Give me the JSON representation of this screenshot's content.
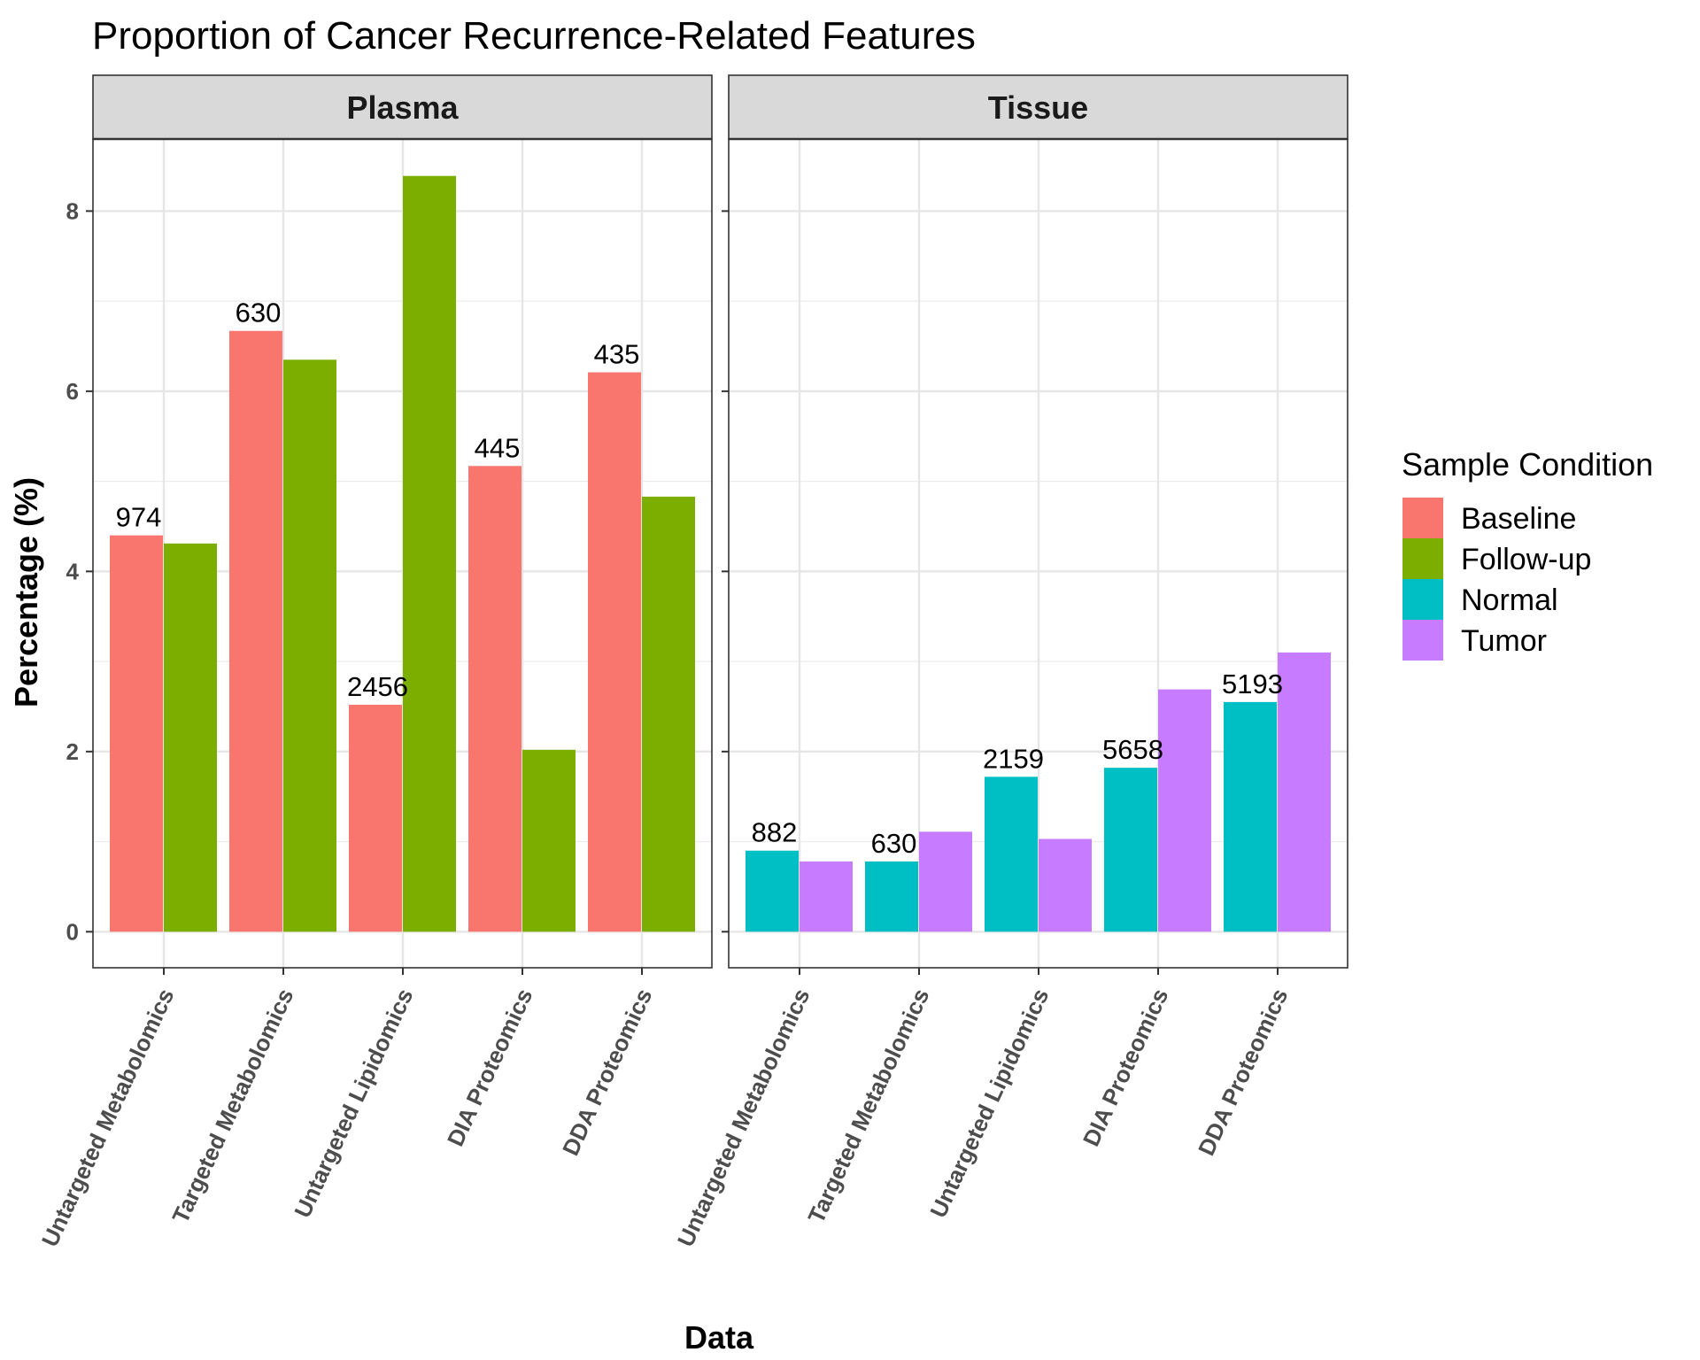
{
  "chart_data": {
    "type": "bar",
    "title": "Proportion of Cancer Recurrence-Related Features",
    "xlabel": "Data",
    "ylabel": "Percentage (%)",
    "ylim": [
      -0.4,
      8.8
    ],
    "y_ticks": [
      0,
      2,
      4,
      6,
      8
    ],
    "y_tick_labels": [
      "0",
      "2",
      "4",
      "6",
      "8"
    ],
    "grid": true,
    "legend": {
      "title": "Sample Condition",
      "position": "right",
      "entries": [
        {
          "name": "Baseline",
          "color": "#F8766D"
        },
        {
          "name": "Follow-up",
          "color": "#7CAE00"
        },
        {
          "name": "Normal",
          "color": "#00BFC4"
        },
        {
          "name": "Tumor",
          "color": "#C77CFF"
        }
      ]
    },
    "categories": [
      "Untargeted Metabolomics",
      "Targeted Metabolomics",
      "Untargeted Lipidomics",
      "DIA Proteomics",
      "DDA Proteomics"
    ],
    "panels": [
      {
        "name": "Plasma",
        "series": [
          {
            "name": "Baseline",
            "color": "#F8766D",
            "values": [
              4.4,
              6.67,
              2.52,
              5.17,
              6.21
            ]
          },
          {
            "name": "Follow-up",
            "color": "#7CAE00",
            "values": [
              4.31,
              6.35,
              8.39,
              2.02,
              4.83
            ]
          }
        ],
        "annotations": [
          "974",
          "630",
          "2456",
          "445",
          "435"
        ]
      },
      {
        "name": "Tissue",
        "series": [
          {
            "name": "Normal",
            "color": "#00BFC4",
            "values": [
              0.9,
              0.78,
              1.72,
              1.82,
              2.55
            ]
          },
          {
            "name": "Tumor",
            "color": "#C77CFF",
            "values": [
              0.78,
              1.11,
              1.03,
              2.69,
              3.1
            ]
          }
        ],
        "annotations": [
          "882",
          "630",
          "2159",
          "5658",
          "5193"
        ]
      }
    ]
  }
}
